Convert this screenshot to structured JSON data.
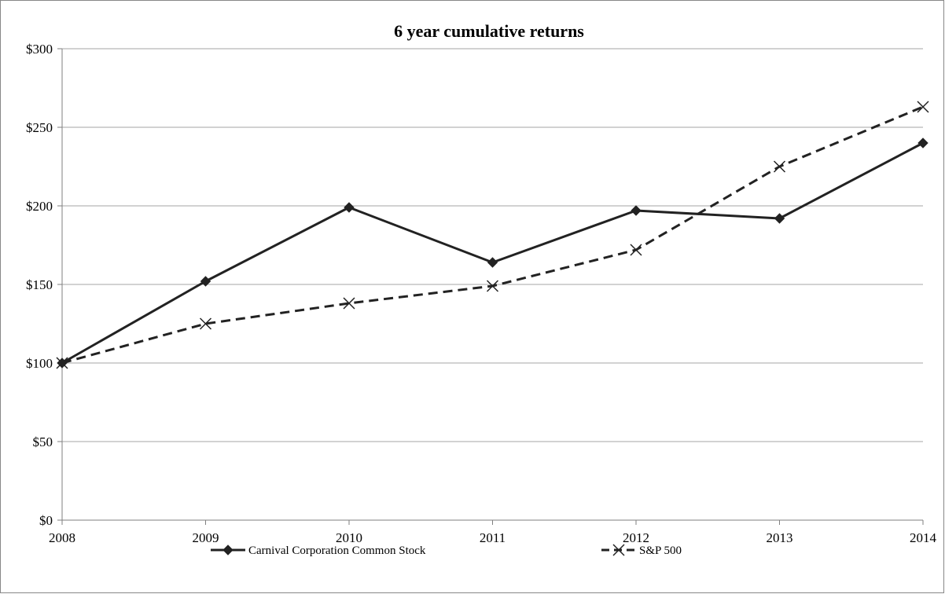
{
  "chart_data": {
    "type": "line",
    "title": "6 year cumulative returns",
    "xlabel": "",
    "ylabel": "",
    "x": [
      "2008",
      "2009",
      "2010",
      "2011",
      "2012",
      "2013",
      "2014"
    ],
    "ylim": [
      0,
      300
    ],
    "y_ticks": [
      0,
      50,
      100,
      150,
      200,
      250,
      300
    ],
    "y_tick_labels": [
      "$0",
      "$50",
      "$100",
      "$150",
      "$200",
      "$250",
      "$300"
    ],
    "grid": true,
    "legend_position": "bottom",
    "series": [
      {
        "name": "Carnival Corporation Common Stock",
        "values": [
          100,
          152,
          199,
          164,
          197,
          192,
          240
        ],
        "marker": "diamond",
        "line_style": "solid",
        "color": "#222222"
      },
      {
        "name": "S&P 500",
        "values": [
          100,
          125,
          138,
          149,
          172,
          225,
          263
        ],
        "marker": "x",
        "line_style": "dashed",
        "color": "#222222"
      }
    ]
  }
}
